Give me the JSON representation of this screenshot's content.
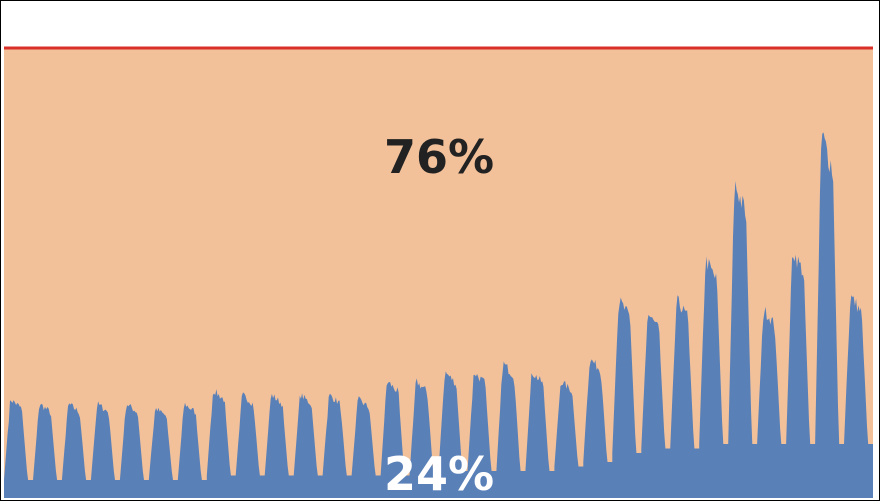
{
  "chart_data": {
    "type": "area",
    "stacked": true,
    "x_count": 30,
    "ylim": [
      0,
      100
    ],
    "capacity_line": 100,
    "colors": {
      "idle": "#f2c19a",
      "used": "#5a80b8",
      "capacity_line": "#d9302a",
      "frame": "#000000"
    },
    "series": [
      {
        "key": "idle",
        "label": "76%",
        "label_color": "#222222"
      },
      {
        "key": "used",
        "label": "24%",
        "label_color": "#ffffff",
        "cycles": [
          {
            "peak": 22,
            "base": 4
          },
          {
            "peak": 21,
            "base": 4
          },
          {
            "peak": 21,
            "base": 4
          },
          {
            "peak": 21,
            "base": 4
          },
          {
            "peak": 21,
            "base": 4
          },
          {
            "peak": 20,
            "base": 4
          },
          {
            "peak": 21,
            "base": 4
          },
          {
            "peak": 24,
            "base": 5
          },
          {
            "peak": 23,
            "base": 5
          },
          {
            "peak": 23,
            "base": 5
          },
          {
            "peak": 23,
            "base": 5
          },
          {
            "peak": 23,
            "base": 5
          },
          {
            "peak": 22,
            "base": 5
          },
          {
            "peak": 26,
            "base": 5
          },
          {
            "peak": 26,
            "base": 5
          },
          {
            "peak": 28,
            "base": 6
          },
          {
            "peak": 28,
            "base": 6
          },
          {
            "peak": 30,
            "base": 6
          },
          {
            "peak": 28,
            "base": 6
          },
          {
            "peak": 26,
            "base": 7
          },
          {
            "peak": 31,
            "base": 8
          },
          {
            "peak": 44,
            "base": 10
          },
          {
            "peak": 41,
            "base": 11
          },
          {
            "peak": 44,
            "base": 11
          },
          {
            "peak": 53,
            "base": 12
          },
          {
            "peak": 70,
            "base": 12
          },
          {
            "peak": 42,
            "base": 12
          },
          {
            "peak": 55,
            "base": 12
          },
          {
            "peak": 81,
            "base": 12
          },
          {
            "peak": 45,
            "base": 12
          }
        ]
      }
    ]
  }
}
